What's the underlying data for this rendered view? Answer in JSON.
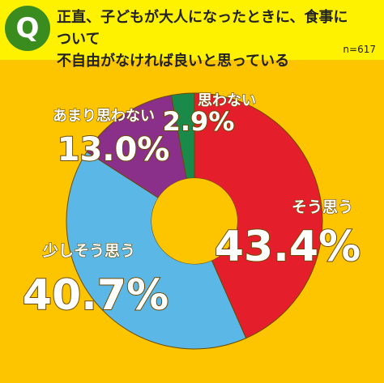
{
  "question": {
    "badge": "Q",
    "line1": "正直、子どもが大人になったときに、食事について",
    "line2": "不自由がなければ良いと思っている",
    "n": "n=617"
  },
  "colors": {
    "background": "#fdc400",
    "header": "#fff200",
    "badge": "#3b8c1e"
  },
  "chart_data": {
    "type": "pie",
    "donut": true,
    "slices": [
      {
        "label": "そう思う",
        "value": 43.4,
        "display": "43.4%",
        "color": "#e41e2b"
      },
      {
        "label": "少しそう思う",
        "value": 40.7,
        "display": "40.7%",
        "color": "#5bb8e6"
      },
      {
        "label": "あまり思わない",
        "value": 13.0,
        "display": "13.0%",
        "color": "#8a2f8a"
      },
      {
        "label": "思わない",
        "value": 2.9,
        "display": "2.9%",
        "color": "#1a8a4a"
      }
    ]
  }
}
